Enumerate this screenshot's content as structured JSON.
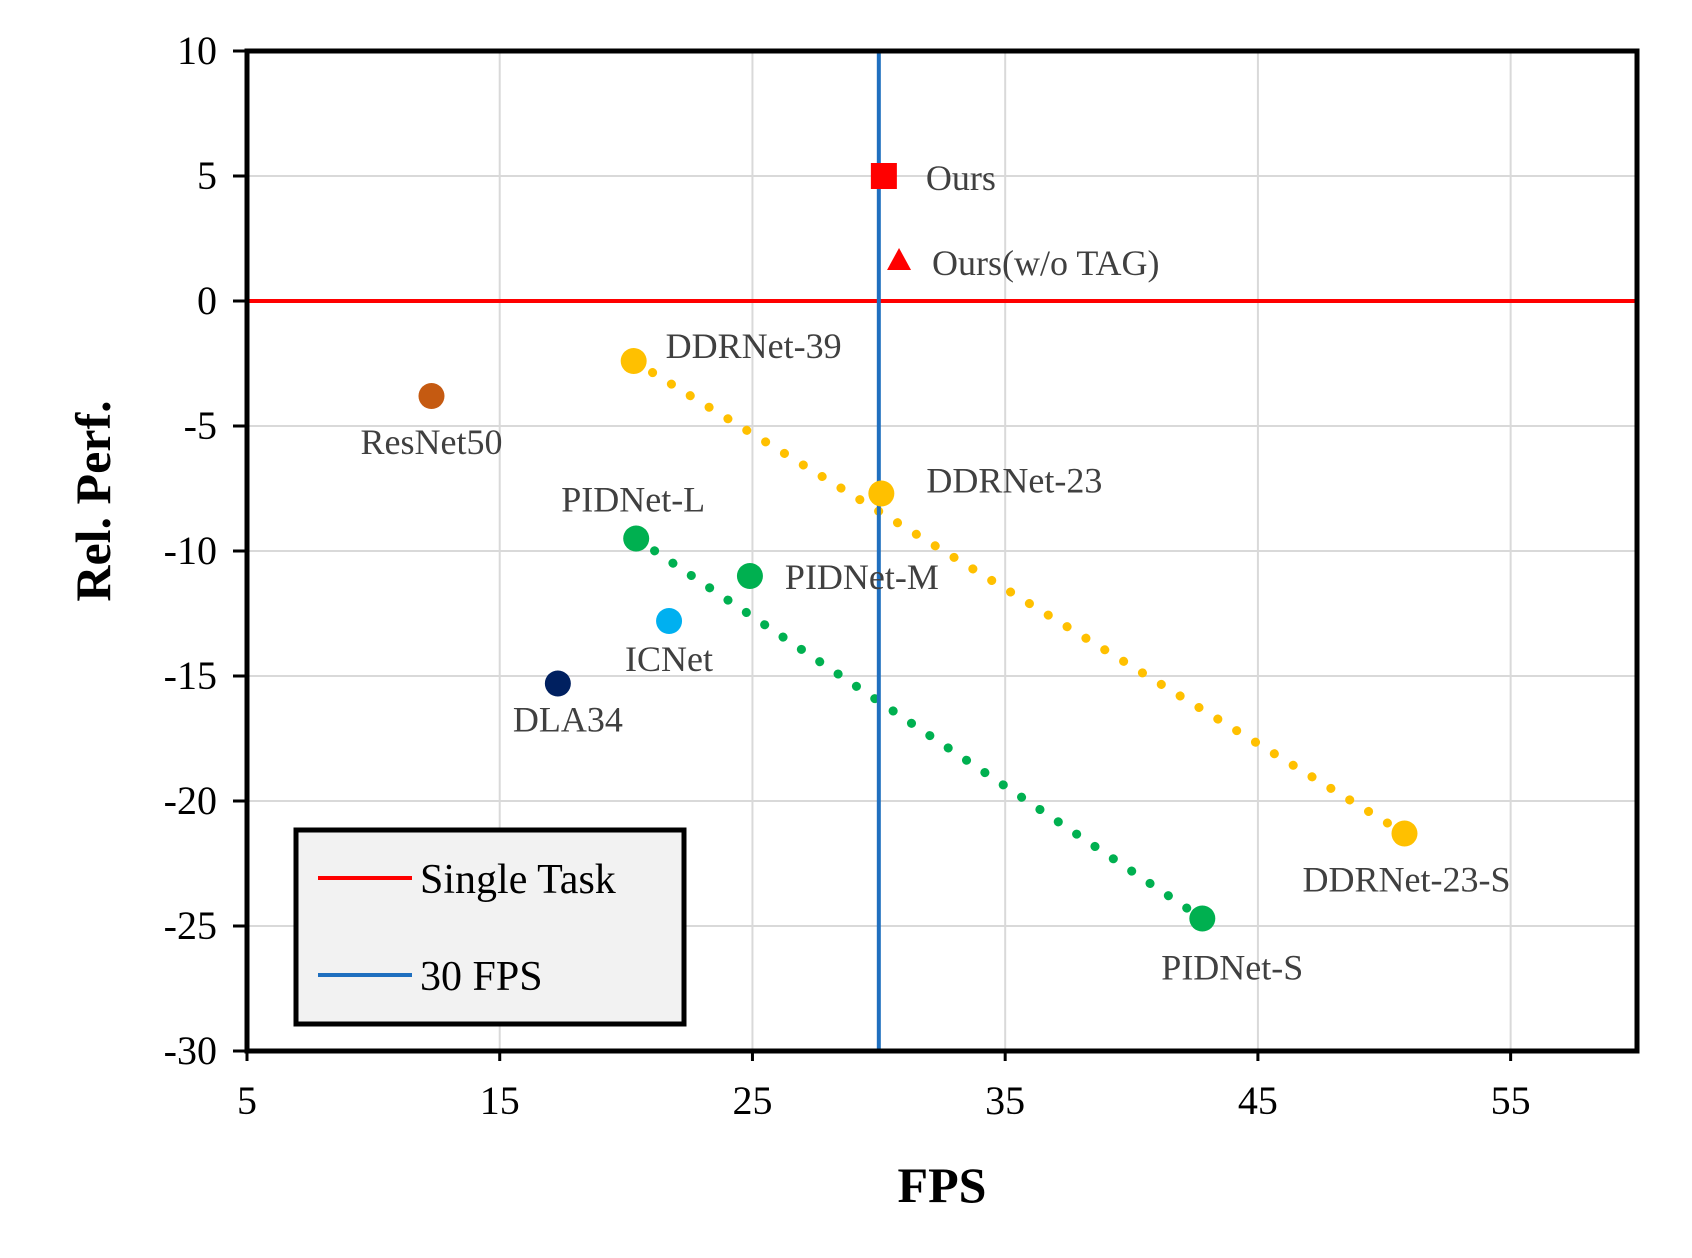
{
  "chart_data": {
    "type": "scatter",
    "xlabel": "FPS",
    "ylabel": "Rel. Perf.",
    "xlim": [
      5,
      60
    ],
    "ylim": [
      -30,
      10
    ],
    "xticks": [
      5,
      15,
      25,
      35,
      45,
      55
    ],
    "yticks": [
      10,
      5,
      0,
      -5,
      -10,
      -15,
      -20,
      -25,
      -30
    ],
    "grid": true,
    "reference_lines": [
      {
        "name": "Single Task",
        "orientation": "horizontal",
        "value": 0,
        "color": "#ff0000"
      },
      {
        "name": "30 FPS",
        "orientation": "vertical",
        "value": 30,
        "color": "#1f6fbf"
      }
    ],
    "points": [
      {
        "label": "Ours",
        "x": 30.2,
        "y": 5.0,
        "marker": "square",
        "color": "#ff0000"
      },
      {
        "label": "Ours(w/o TAG)",
        "x": 30.8,
        "y": 1.6,
        "marker": "triangle",
        "color": "#ff0000"
      },
      {
        "label": "DDRNet-39",
        "x": 20.3,
        "y": -2.4,
        "marker": "circle",
        "color": "#ffc000"
      },
      {
        "label": "ResNet50",
        "x": 12.3,
        "y": -3.8,
        "marker": "circle",
        "color": "#c55a11"
      },
      {
        "label": "DDRNet-23",
        "x": 30.1,
        "y": -7.7,
        "marker": "circle",
        "color": "#ffc000"
      },
      {
        "label": "PIDNet-L",
        "x": 20.4,
        "y": -9.5,
        "marker": "circle",
        "color": "#00b050"
      },
      {
        "label": "PIDNet-M",
        "x": 24.9,
        "y": -11.0,
        "marker": "circle",
        "color": "#00b050"
      },
      {
        "label": "ICNet",
        "x": 21.7,
        "y": -12.8,
        "marker": "circle",
        "color": "#00b0f0"
      },
      {
        "label": "DLA34",
        "x": 17.3,
        "y": -15.3,
        "marker": "circle",
        "color": "#002060"
      },
      {
        "label": "DDRNet-23-S",
        "x": 50.8,
        "y": -21.3,
        "marker": "circle",
        "color": "#ffc000"
      },
      {
        "label": "PIDNet-S",
        "x": 42.8,
        "y": -24.7,
        "marker": "circle",
        "color": "#00b050"
      }
    ],
    "trendlines": [
      {
        "name": "DDRNet",
        "color": "#ffc000",
        "style": "dotted",
        "from": [
          20.3,
          -2.4
        ],
        "to": [
          50.8,
          -21.3
        ]
      },
      {
        "name": "PIDNet",
        "color": "#00b050",
        "style": "dotted",
        "from": [
          20.4,
          -9.5
        ],
        "to": [
          42.8,
          -24.7
        ]
      }
    ],
    "legend": {
      "position": "bottom-left",
      "entries": [
        {
          "label": "Single Task",
          "color": "#ff0000"
        },
        {
          "label": "30 FPS",
          "color": "#1f6fbf"
        }
      ]
    }
  }
}
